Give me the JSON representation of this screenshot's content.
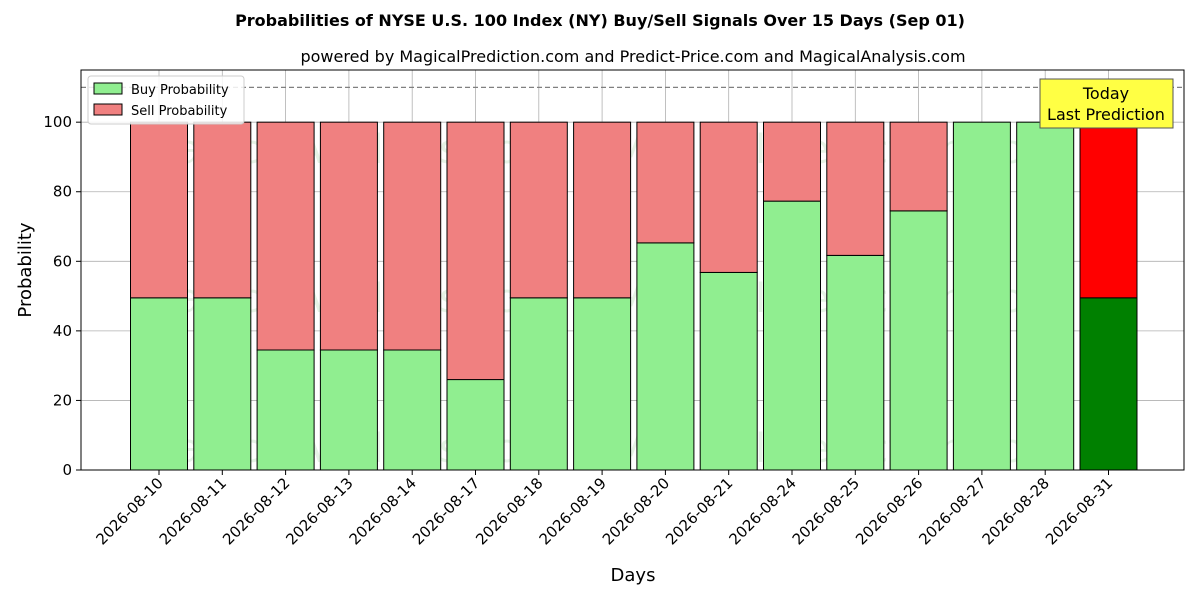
{
  "chart_data": {
    "type": "bar",
    "stacked": true,
    "title": "Probabilities of NYSE U.S. 100 Index (NY) Buy/Sell Signals Over 15 Days (Sep 01)",
    "subtitle": "powered by MagicalPrediction.com and Predict-Price.com and MagicalAnalysis.com",
    "xlabel": "Days",
    "ylabel": "Probability",
    "ylim": [
      0,
      115
    ],
    "yticks": [
      0,
      20,
      40,
      60,
      80,
      100
    ],
    "grid": true,
    "legend_position": "top-left",
    "reference_line": 110,
    "categories": [
      "2026-08-10",
      "2026-08-11",
      "2026-08-12",
      "2026-08-13",
      "2026-08-14",
      "2026-08-17",
      "2026-08-18",
      "2026-08-19",
      "2026-08-20",
      "2026-08-21",
      "2026-08-24",
      "2026-08-25",
      "2026-08-26",
      "2026-08-27",
      "2026-08-28",
      "2026-08-31"
    ],
    "series": [
      {
        "name": "Buy Probability",
        "color": "#90ee90",
        "values": [
          49.5,
          49.5,
          34.5,
          34.5,
          34.5,
          26,
          49.5,
          49.5,
          65.3,
          56.8,
          77.3,
          61.7,
          74.5,
          100,
          100,
          49.5
        ]
      },
      {
        "name": "Sell Probability",
        "color": "#f08080",
        "values": [
          50.5,
          50.5,
          65.5,
          65.5,
          65.5,
          74,
          50.5,
          50.5,
          34.7,
          43.2,
          22.7,
          38.3,
          25.5,
          0,
          0,
          50.5
        ]
      }
    ],
    "highlight": {
      "index": 15,
      "buy_color": "#008000",
      "sell_color": "#ff0000"
    },
    "annotation": {
      "line1": "Today",
      "line2": "Last Prediction",
      "background": "#ffff44"
    },
    "watermarks": [
      "MagicalAnalysis.com",
      "MagicalPrediction.com"
    ]
  }
}
